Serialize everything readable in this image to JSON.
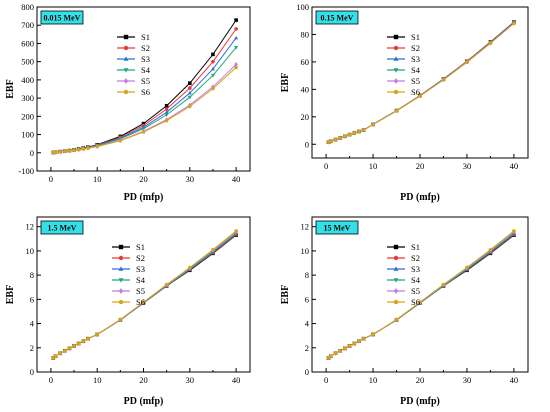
{
  "series_styles": [
    {
      "name": "S1",
      "color": "#000000",
      "marker": "square"
    },
    {
      "name": "S2",
      "color": "#e8383d",
      "marker": "circle"
    },
    {
      "name": "S3",
      "color": "#2f6fd6",
      "marker": "triangle-up"
    },
    {
      "name": "S4",
      "color": "#1fa67a",
      "marker": "triangle-down"
    },
    {
      "name": "S5",
      "color": "#c37de0",
      "marker": "diamond"
    },
    {
      "name": "S6",
      "color": "#d9a21b",
      "marker": "pentagon"
    }
  ],
  "energy_label_bg": "#33e0e8",
  "chart_data": [
    {
      "type": "line",
      "energy_label": "0.015 MeV",
      "xlabel": "PD (mfp)",
      "ylabel": "EBF",
      "xlim": [
        -3,
        43
      ],
      "ylim": [
        -100,
        800
      ],
      "xticks": [
        0,
        10,
        20,
        30,
        40
      ],
      "yticks": [
        -100,
        0,
        100,
        200,
        300,
        400,
        500,
        600,
        700,
        800
      ],
      "x": [
        0.5,
        1,
        2,
        3,
        4,
        5,
        6,
        7,
        8,
        10,
        15,
        20,
        25,
        30,
        35,
        40
      ],
      "series": [
        {
          "name": "S1",
          "values": [
            1.5,
            3,
            6,
            9,
            12,
            16,
            21,
            26,
            31,
            44,
            90,
            160,
            258,
            382,
            540,
            728
          ]
        },
        {
          "name": "S2",
          "values": [
            1.5,
            3,
            6,
            9,
            12,
            16,
            20,
            25,
            30,
            42,
            85,
            150,
            240,
            355,
            500,
            680
          ]
        },
        {
          "name": "S3",
          "values": [
            1.5,
            3,
            5.8,
            8.7,
            11.6,
            15.5,
            19.5,
            24,
            29,
            40,
            80,
            140,
            222,
            328,
            460,
            630
          ]
        },
        {
          "name": "S4",
          "values": [
            1.5,
            3,
            5.6,
            8.4,
            11.2,
            15,
            19,
            23,
            28,
            38,
            76,
            132,
            208,
            305,
            425,
            578
          ]
        },
        {
          "name": "S5",
          "values": [
            1.5,
            2.8,
            5.3,
            8,
            10.5,
            14,
            17.5,
            21.5,
            26,
            35,
            68,
            118,
            182,
            262,
            362,
            485
          ]
        },
        {
          "name": "S6",
          "values": [
            1.5,
            2.8,
            5.2,
            7.8,
            10.3,
            13.7,
            17,
            21,
            25,
            34,
            66,
            114,
            176,
            254,
            352,
            468
          ]
        }
      ],
      "legend_position": "top-center"
    },
    {
      "type": "line",
      "energy_label": "0.15 MeV",
      "xlabel": "PD (mfp)",
      "ylabel": "EBF",
      "xlim": [
        -3,
        43
      ],
      "ylim": [
        -10,
        100
      ],
      "xticks": [
        0,
        10,
        20,
        30,
        40
      ],
      "yticks": [
        0,
        20,
        40,
        60,
        80,
        100
      ],
      "x": [
        0.5,
        1,
        2,
        3,
        4,
        5,
        6,
        7,
        8,
        10,
        15,
        20,
        25,
        30,
        35,
        40
      ],
      "series": [
        {
          "name": "S1",
          "values": [
            1.5,
            2.2,
            3.4,
            4.6,
            5.8,
            7.0,
            8.2,
            9.3,
            10.4,
            14.5,
            24.5,
            35.5,
            47.5,
            60.5,
            74.5,
            89
          ]
        },
        {
          "name": "S2",
          "values": [
            1.5,
            2.2,
            3.4,
            4.6,
            5.8,
            7.0,
            8.2,
            9.3,
            10.4,
            14.5,
            24.5,
            35.4,
            47.4,
            60.4,
            74.3,
            88.8
          ]
        },
        {
          "name": "S3",
          "values": [
            1.5,
            2.2,
            3.4,
            4.6,
            5.8,
            7.0,
            8.2,
            9.3,
            10.4,
            14.5,
            24.4,
            35.3,
            47.3,
            60.2,
            74.1,
            88.6
          ]
        },
        {
          "name": "S4",
          "values": [
            1.5,
            2.2,
            3.4,
            4.6,
            5.8,
            7.0,
            8.2,
            9.3,
            10.4,
            14.5,
            24.4,
            35.3,
            47.2,
            60.1,
            74.0,
            88.4
          ]
        },
        {
          "name": "S5",
          "values": [
            1.5,
            2.2,
            3.4,
            4.6,
            5.8,
            7.0,
            8.2,
            9.3,
            10.4,
            14.4,
            24.3,
            35.2,
            47.0,
            59.9,
            73.7,
            88.2
          ]
        },
        {
          "name": "S6",
          "values": [
            1.5,
            2.2,
            3.4,
            4.6,
            5.8,
            7.0,
            8.2,
            9.3,
            10.4,
            14.4,
            24.3,
            35.1,
            46.9,
            59.7,
            73.5,
            88.0
          ]
        }
      ],
      "legend_position": "top-center"
    },
    {
      "type": "line",
      "energy_label": "1.5 MeV",
      "xlabel": "PD (mfp)",
      "ylabel": "EBF",
      "xlim": [
        -3,
        43
      ],
      "ylim": [
        0,
        12.8
      ],
      "xticks": [
        0,
        10,
        20,
        30,
        40
      ],
      "yticks": [
        0,
        2,
        4,
        6,
        8,
        10,
        12
      ],
      "x": [
        0.5,
        1,
        2,
        3,
        4,
        5,
        6,
        7,
        8,
        10,
        15,
        20,
        25,
        30,
        35,
        40
      ],
      "series": [
        {
          "name": "S1",
          "values": [
            1.15,
            1.3,
            1.55,
            1.75,
            1.95,
            2.15,
            2.35,
            2.55,
            2.75,
            3.1,
            4.3,
            5.7,
            7.1,
            8.4,
            9.8,
            11.3
          ]
        },
        {
          "name": "S2",
          "values": [
            1.15,
            1.3,
            1.55,
            1.75,
            1.95,
            2.15,
            2.35,
            2.55,
            2.75,
            3.1,
            4.3,
            5.7,
            7.1,
            8.45,
            9.85,
            11.35
          ]
        },
        {
          "name": "S3",
          "values": [
            1.15,
            1.3,
            1.55,
            1.75,
            1.95,
            2.15,
            2.35,
            2.55,
            2.75,
            3.1,
            4.3,
            5.7,
            7.12,
            8.48,
            9.9,
            11.42
          ]
        },
        {
          "name": "S4",
          "values": [
            1.15,
            1.3,
            1.55,
            1.75,
            1.95,
            2.15,
            2.35,
            2.55,
            2.75,
            3.1,
            4.3,
            5.72,
            7.15,
            8.52,
            9.95,
            11.48
          ]
        },
        {
          "name": "S5",
          "values": [
            1.15,
            1.3,
            1.55,
            1.75,
            1.95,
            2.15,
            2.35,
            2.55,
            2.75,
            3.1,
            4.32,
            5.75,
            7.2,
            8.6,
            10.05,
            11.6
          ]
        },
        {
          "name": "S6",
          "values": [
            1.15,
            1.3,
            1.55,
            1.75,
            1.95,
            2.15,
            2.35,
            2.55,
            2.75,
            3.1,
            4.33,
            5.77,
            7.22,
            8.63,
            10.1,
            11.65
          ]
        }
      ],
      "legend_position": "top-center"
    },
    {
      "type": "line",
      "energy_label": "15 MeV",
      "xlabel": "PD (mfp)",
      "ylabel": "EBF",
      "xlim": [
        -3,
        43
      ],
      "ylim": [
        0,
        12.8
      ],
      "xticks": [
        0,
        10,
        20,
        30,
        40
      ],
      "yticks": [
        0,
        2,
        4,
        6,
        8,
        10,
        12
      ],
      "x": [
        0.5,
        1,
        2,
        3,
        4,
        5,
        6,
        7,
        8,
        10,
        15,
        20,
        25,
        30,
        35,
        40
      ],
      "series": [
        {
          "name": "S1",
          "values": [
            1.15,
            1.3,
            1.55,
            1.75,
            1.95,
            2.15,
            2.35,
            2.55,
            2.75,
            3.1,
            4.3,
            5.7,
            7.1,
            8.4,
            9.8,
            11.3
          ]
        },
        {
          "name": "S2",
          "values": [
            1.15,
            1.3,
            1.55,
            1.75,
            1.95,
            2.15,
            2.35,
            2.55,
            2.75,
            3.1,
            4.3,
            5.7,
            7.1,
            8.45,
            9.85,
            11.35
          ]
        },
        {
          "name": "S3",
          "values": [
            1.15,
            1.3,
            1.55,
            1.75,
            1.95,
            2.15,
            2.35,
            2.55,
            2.75,
            3.1,
            4.3,
            5.7,
            7.12,
            8.48,
            9.9,
            11.42
          ]
        },
        {
          "name": "S4",
          "values": [
            1.15,
            1.3,
            1.55,
            1.75,
            1.95,
            2.15,
            2.35,
            2.55,
            2.75,
            3.1,
            4.3,
            5.72,
            7.15,
            8.52,
            9.95,
            11.48
          ]
        },
        {
          "name": "S5",
          "values": [
            1.15,
            1.3,
            1.55,
            1.75,
            1.95,
            2.15,
            2.35,
            2.55,
            2.75,
            3.1,
            4.32,
            5.75,
            7.2,
            8.6,
            10.05,
            11.6
          ]
        },
        {
          "name": "S6",
          "values": [
            1.15,
            1.3,
            1.55,
            1.75,
            1.95,
            2.15,
            2.35,
            2.55,
            2.75,
            3.1,
            4.33,
            5.77,
            7.22,
            8.63,
            10.1,
            11.65
          ]
        }
      ],
      "legend_position": "top-center"
    }
  ]
}
